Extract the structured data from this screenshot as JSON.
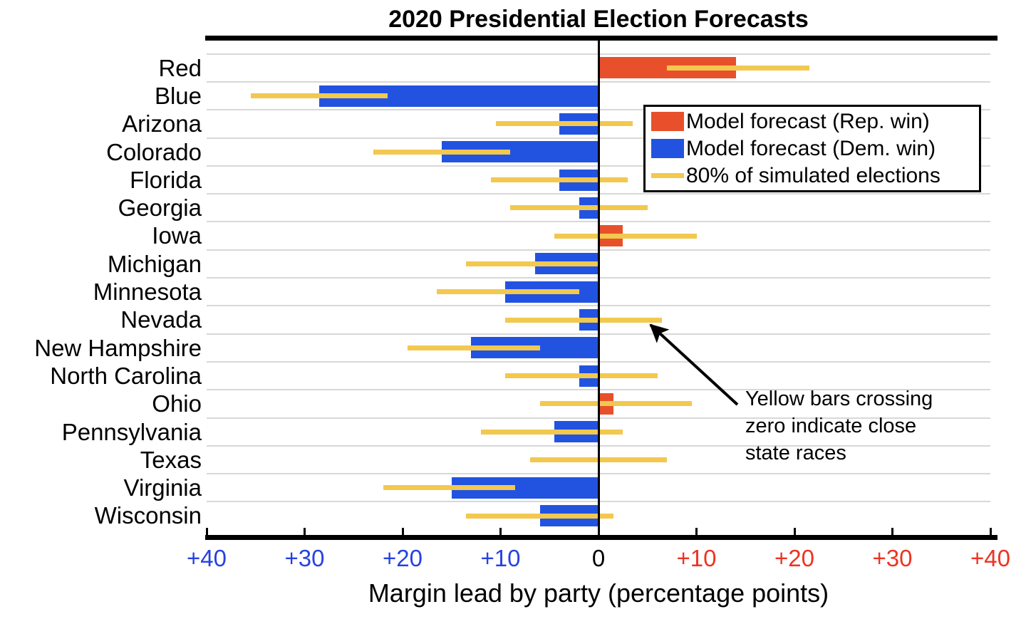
{
  "title": "2020 Presidential Election Forecasts",
  "axis": {
    "xlabel": "Margin lead by party (percentage points)",
    "ticks": [
      {
        "label": "+40",
        "value": -40,
        "side": "dem"
      },
      {
        "label": "+30",
        "value": -30,
        "side": "dem"
      },
      {
        "label": "+20",
        "value": -20,
        "side": "dem"
      },
      {
        "label": "+10",
        "value": -10,
        "side": "dem"
      },
      {
        "label": "0",
        "value": 0,
        "side": "neutral"
      },
      {
        "label": "+10",
        "value": 10,
        "side": "rep"
      },
      {
        "label": "+20",
        "value": 20,
        "side": "rep"
      },
      {
        "label": "+30",
        "value": 30,
        "side": "rep"
      },
      {
        "label": "+40",
        "value": 40,
        "side": "rep"
      }
    ]
  },
  "colors": {
    "rep": "#E8502B",
    "dem": "#2253E0",
    "band": "#F2C84F",
    "grid": "#D8D8D8",
    "axis": "#000000",
    "tick_dem": "#2742E0",
    "tick_rep": "#EE3322",
    "tick_zero": "#000000"
  },
  "legend": {
    "items": [
      {
        "swatch": "rect",
        "color_key": "rep",
        "label": "Model forecast (Rep. win)"
      },
      {
        "swatch": "rect",
        "color_key": "dem",
        "label": "Model forecast (Dem. win)"
      },
      {
        "swatch": "line",
        "color_key": "band",
        "label": "80% of simulated elections"
      }
    ]
  },
  "annotation": {
    "lines": [
      "Yellow bars crossing",
      "zero indicate close",
      "state races"
    ]
  },
  "chart_data": {
    "type": "bar",
    "orientation": "horizontal",
    "title": "2020 Presidential Election Forecasts",
    "xlabel": "Margin lead by party (percentage points)",
    "xlim": [
      -40,
      40
    ],
    "x_tick_interval": 10,
    "value_semantics": "negative = Democratic margin lead (blue bars, left), positive = Republican margin lead (red bars, right)",
    "grid": "horizontal lines between category rows",
    "legend_position": "upper right",
    "categories": [
      "Red",
      "Blue",
      "Arizona",
      "Colorado",
      "Florida",
      "Georgia",
      "Iowa",
      "Michigan",
      "Minnesota",
      "Nevada",
      "New Hampshire",
      "North Carolina",
      "Ohio",
      "Pennsylvania",
      "Texas",
      "Virginia",
      "Wisconsin"
    ],
    "values": [
      14,
      -28.5,
      -4,
      -16,
      -4,
      -2,
      2.5,
      -6.5,
      -9.5,
      -2,
      -13,
      -2,
      1.5,
      -4.5,
      0,
      -15,
      -6
    ],
    "error_band_80pct": [
      [
        7,
        21.5
      ],
      [
        -35.5,
        -21.5
      ],
      [
        -10.5,
        3.5
      ],
      [
        -23,
        -9
      ],
      [
        -11,
        3
      ],
      [
        -9,
        5
      ],
      [
        -4.5,
        10
      ],
      [
        -13.5,
        0
      ],
      [
        -16.5,
        -2
      ],
      [
        -9.5,
        6.5
      ],
      [
        -19.5,
        -6
      ],
      [
        -9.5,
        6
      ],
      [
        -6,
        9.5
      ],
      [
        -12,
        2.5
      ],
      [
        -7,
        7
      ],
      [
        -22,
        -8.5
      ],
      [
        -13.5,
        1.5
      ]
    ]
  }
}
